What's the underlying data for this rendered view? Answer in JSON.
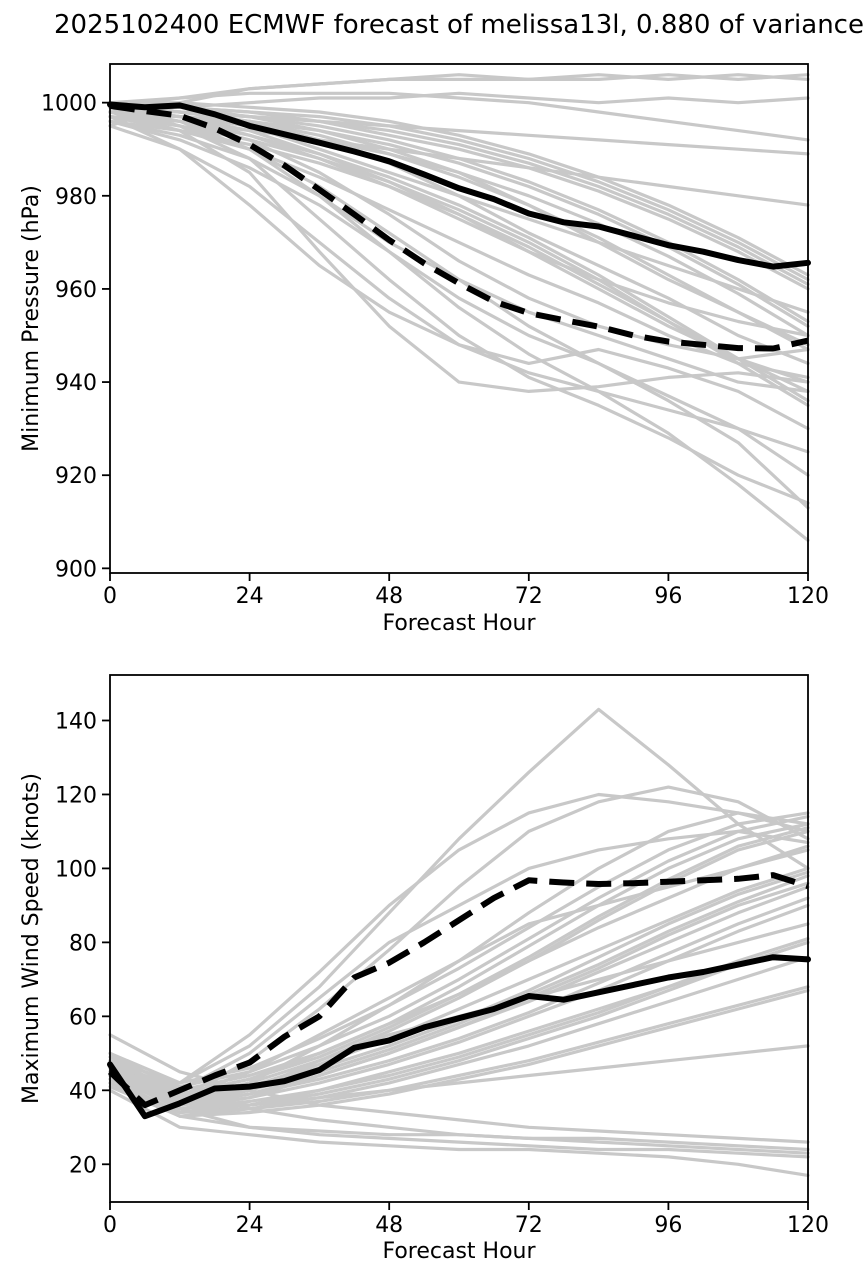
{
  "title": "2025102400 ECMWF forecast of melissa13l, 0.880 of variance",
  "colors": {
    "member_line": "#c8c8c8",
    "mean_line": "#000000",
    "control_line": "#000000",
    "axis": "#000000"
  },
  "chart_data": [
    {
      "type": "line",
      "name": "minimum-pressure-panel",
      "xlabel": "Forecast Hour",
      "ylabel": "Minimum Pressure (hPa)",
      "xlim": [
        0,
        120
      ],
      "ylim": [
        899,
        1008.3
      ],
      "xticks": [
        0,
        24,
        48,
        72,
        96,
        120
      ],
      "yticks": [
        900,
        920,
        940,
        960,
        980,
        1000
      ],
      "grid": false,
      "legend": "none",
      "x_mean": [
        0,
        6,
        12,
        18,
        24,
        30,
        36,
        42,
        48,
        54,
        60,
        66,
        72,
        78,
        84,
        90,
        96,
        102,
        108,
        114,
        120
      ],
      "x_members": [
        0,
        12,
        24,
        36,
        48,
        60,
        72,
        84,
        96,
        108,
        120
      ],
      "series": {
        "mean": {
          "name": "ensemble-mean-pressure",
          "style": "solid",
          "values": [
            999.6,
            999.0,
            999.4,
            997.5,
            995.0,
            993.2,
            991.4,
            989.5,
            987.4,
            984.6,
            981.6,
            979.3,
            976.2,
            974.3,
            973.4,
            971.4,
            969.4,
            968.0,
            966.2,
            964.8,
            965.6
          ]
        },
        "control": {
          "name": "control-forecast-pressure",
          "style": "dashed",
          "values": [
            999.3,
            998.2,
            997.2,
            994.5,
            991.0,
            986.5,
            981.3,
            976.0,
            970.5,
            965.5,
            961.2,
            957.3,
            954.8,
            953.3,
            951.9,
            950.0,
            948.7,
            948.0,
            947.3,
            947.2,
            948.9
          ]
        },
        "members": {
          "name": "ensemble-member-pressure",
          "style": "member",
          "values": [
            [
              999,
              1001,
              1003,
              1004,
              1005,
              1005,
              1005,
              1006,
              1005,
              1006,
              1005
            ],
            [
              998,
              999,
              1000,
              1001,
              1001,
              1002,
              1001,
              1000,
              1001,
              1000,
              1001
            ],
            [
              999,
              998,
              997,
              996,
              995,
              994,
              993,
              992,
              991,
              990,
              989
            ],
            [
              997,
              996,
              994,
              992,
              990,
              988,
              986,
              984,
              982,
              980,
              978
            ],
            [
              998,
              997,
              995,
              990,
              985,
              980,
              975,
              970,
              965,
              960,
              955
            ],
            [
              999,
              997,
              993,
              988,
              982,
              975,
              968,
              962,
              957,
              953,
              950
            ],
            [
              996,
              993,
              988,
              980,
              970,
              962,
              955,
              950,
              945,
              940,
              938
            ],
            [
              995,
              990,
              982,
              970,
              958,
              948,
              942,
              938,
              934,
              930,
              925
            ],
            [
              998,
              994,
              985,
              968,
              952,
              940,
              938,
              939,
              941,
              942,
              940
            ],
            [
              999,
              998,
              996,
              992,
              987,
              980,
              972,
              965,
              958,
              950,
              944
            ],
            [
              1000,
              999,
              997,
              994,
              990,
              985,
              978,
              970,
              962,
              955,
              948
            ],
            [
              998,
              996,
              992,
              985,
              976,
              966,
              958,
              952,
              948,
              945,
              947
            ],
            [
              999,
              997,
              994,
              989,
              983,
              976,
              968,
              960,
              952,
              945,
              940
            ],
            [
              997,
              994,
              990,
              984,
              977,
              970,
              963,
              957,
              950,
              944,
              941
            ],
            [
              999,
              998,
              997,
              995,
              992,
              988,
              983,
              977,
              970,
              962,
              953
            ],
            [
              1000,
              1000,
              999,
              998,
              996,
              993,
              989,
              984,
              978,
              971,
              963
            ],
            [
              998,
              997,
              996,
              994,
              991,
              987,
              982,
              976,
              969,
              961,
              952
            ],
            [
              999,
              999,
              998,
              997,
              995,
              992,
              988,
              983,
              977,
              970,
              962
            ],
            [
              996,
              992,
              986,
              978,
              968,
              958,
              950,
              944,
              937,
              930,
              920
            ],
            [
              998,
              995,
              990,
              982,
              972,
              962,
              952,
              944,
              936,
              927,
              913
            ],
            [
              999,
              996,
              990,
              980,
              968,
              956,
              946,
              938,
              929,
              918,
              906
            ],
            [
              1000,
              999,
              998,
              996,
              993,
              990,
              986,
              981,
              975,
              968,
              960
            ],
            [
              997,
              995,
              992,
              988,
              983,
              977,
              970,
              962,
              953,
              944,
              935
            ],
            [
              999,
              998,
              997,
              996,
              994,
              991,
              987,
              982,
              976,
              969,
              961
            ],
            [
              998,
              996,
              993,
              989,
              984,
              978,
              971,
              963,
              954,
              945,
              936
            ],
            [
              1000,
              1001,
              1002,
              1002,
              1002,
              1001,
              1000,
              998,
              996,
              994,
              992
            ],
            [
              999,
              998,
              996,
              993,
              989,
              984,
              978,
              971,
              963,
              955,
              947
            ],
            [
              996,
              994,
              991,
              987,
              982,
              976,
              969,
              961,
              953,
              945,
              938
            ],
            [
              995,
              1000,
              1003,
              1004,
              1005,
              1006,
              1005,
              1005,
              1006,
              1005,
              1006
            ],
            [
              998,
              997,
              995,
              992,
              989,
              985,
              980,
              974,
              967,
              959,
              950
            ],
            [
              997,
              990,
              978,
              965,
              955,
              948,
              944,
              947,
              943,
              938,
              930
            ],
            [
              999,
              995,
              988,
              975,
              962,
              950,
              941,
              935,
              928,
              920,
              914
            ]
          ]
        }
      }
    },
    {
      "type": "line",
      "name": "maximum-wind-panel",
      "xlabel": "Forecast Hour",
      "ylabel": "Maximum Wind Speed (knots)",
      "xlim": [
        0,
        120
      ],
      "ylim": [
        9.8,
        152.3
      ],
      "xticks": [
        0,
        24,
        48,
        72,
        96,
        120
      ],
      "yticks": [
        20,
        40,
        60,
        80,
        100,
        120,
        140
      ],
      "grid": false,
      "legend": "none",
      "x_mean": [
        0,
        6,
        12,
        18,
        24,
        30,
        36,
        42,
        48,
        54,
        60,
        66,
        72,
        78,
        84,
        90,
        96,
        102,
        108,
        114,
        120
      ],
      "x_members": [
        0,
        12,
        24,
        36,
        48,
        60,
        72,
        84,
        96,
        108,
        120
      ],
      "series": {
        "mean": {
          "name": "ensemble-mean-wind",
          "style": "solid",
          "values": [
            47,
            33,
            36.5,
            40.5,
            41,
            42.5,
            45.5,
            51.5,
            53.5,
            57,
            59.5,
            62,
            65.5,
            64.5,
            66.5,
            68.5,
            70.5,
            72,
            74,
            76,
            75.4
          ]
        },
        "control": {
          "name": "control-forecast-wind",
          "style": "dashed",
          "values": [
            45,
            36,
            40,
            44,
            47.5,
            54.5,
            60,
            70.5,
            74.5,
            80,
            86,
            92,
            96.8,
            96.2,
            95.8,
            96.0,
            96.4,
            96.8,
            97.2,
            98.2,
            95.2
          ]
        },
        "members": {
          "name": "ensemble-member-wind",
          "style": "member",
          "values": [
            [
              45,
              35,
              30,
              28,
              27,
              26,
              25,
              24,
              24,
              23,
              22
            ],
            [
              50,
              40,
              35,
              32,
              30,
              28,
              27,
              26,
              25,
              24,
              23
            ],
            [
              42,
              33,
              30,
              29,
              28,
              28,
              27,
              27,
              26,
              25,
              24
            ],
            [
              48,
              38,
              36,
              38,
              40,
              42,
              44,
              46,
              48,
              50,
              52
            ],
            [
              46,
              36,
              40,
              48,
              55,
              60,
              65,
              70,
              75,
              80,
              85
            ],
            [
              44,
              38,
              45,
              55,
              65,
              75,
              85,
              90,
              95,
              100,
              105
            ],
            [
              47,
              40,
              50,
              65,
              80,
              90,
              100,
              105,
              108,
              110,
              107
            ],
            [
              45,
              42,
              55,
              72,
              90,
              105,
              115,
              120,
              118,
              115,
              110
            ],
            [
              43,
              36,
              42,
              52,
              63,
              75,
              88,
              100,
              110,
              115,
              112
            ],
            [
              46,
              38,
              48,
              62,
              78,
              95,
              110,
              118,
              122,
              118,
              108
            ],
            [
              44,
              35,
              38,
              44,
              50,
              57,
              64,
              72,
              80,
              88,
              95
            ],
            [
              48,
              40,
              44,
              50,
              58,
              66,
              75,
              84,
              92,
              100,
              106
            ],
            [
              45,
              37,
              41,
              47,
              54,
              62,
              70,
              78,
              86,
              94,
              100
            ],
            [
              42,
              34,
              36,
              40,
              45,
              50,
              56,
              62,
              68,
              74,
              80
            ],
            [
              50,
              42,
              46,
              54,
              63,
              73,
              84,
              95,
              105,
              112,
              115
            ],
            [
              46,
              39,
              43,
              50,
              58,
              68,
              79,
              90,
              100,
              108,
              112
            ],
            [
              44,
              36,
              39,
              44,
              50,
              57,
              65,
              73,
              82,
              90,
              96
            ],
            [
              41,
              33,
              35,
              38,
              42,
              47,
              52,
              58,
              64,
              70,
              76
            ],
            [
              47,
              38,
              42,
              48,
              56,
              65,
              75,
              86,
              96,
              105,
              110
            ],
            [
              45,
              36,
              38,
              42,
              47,
              53,
              60,
              67,
              75,
              83,
              90
            ],
            [
              43,
              34,
              35,
              37,
              40,
              44,
              48,
              53,
              58,
              63,
              68
            ],
            [
              49,
              41,
              45,
              52,
              60,
              70,
              81,
              92,
              102,
              110,
              114
            ],
            [
              46,
              37,
              40,
              45,
              51,
              58,
              66,
              74,
              83,
              91,
              98
            ],
            [
              44,
              35,
              37,
              40,
              44,
              49,
              55,
              61,
              68,
              75,
              81
            ],
            [
              48,
              39,
              43,
              49,
              57,
              66,
              76,
              87,
              97,
              106,
              111
            ],
            [
              45,
              36,
              39,
              43,
              48,
              54,
              61,
              69,
              77,
              85,
              92
            ],
            [
              42,
              33,
              34,
              36,
              39,
              43,
              47,
              52,
              57,
              62,
              67
            ],
            [
              48,
              42,
              52,
              68,
              88,
              108,
              126,
              143,
              128,
              112,
              100
            ],
            [
              44,
              35,
              36,
              39,
              43,
              48,
              54,
              60,
              67,
              74,
              80
            ],
            [
              46,
              38,
              41,
              46,
              52,
              59,
              67,
              76,
              85,
              93,
              99
            ],
            [
              40,
              30,
              28,
              26,
              25,
              24,
              24,
              23,
              22,
              20,
              17
            ],
            [
              55,
              45,
              40,
              36,
              34,
              32,
              30,
              29,
              28,
              27,
              26
            ]
          ]
        }
      }
    }
  ]
}
